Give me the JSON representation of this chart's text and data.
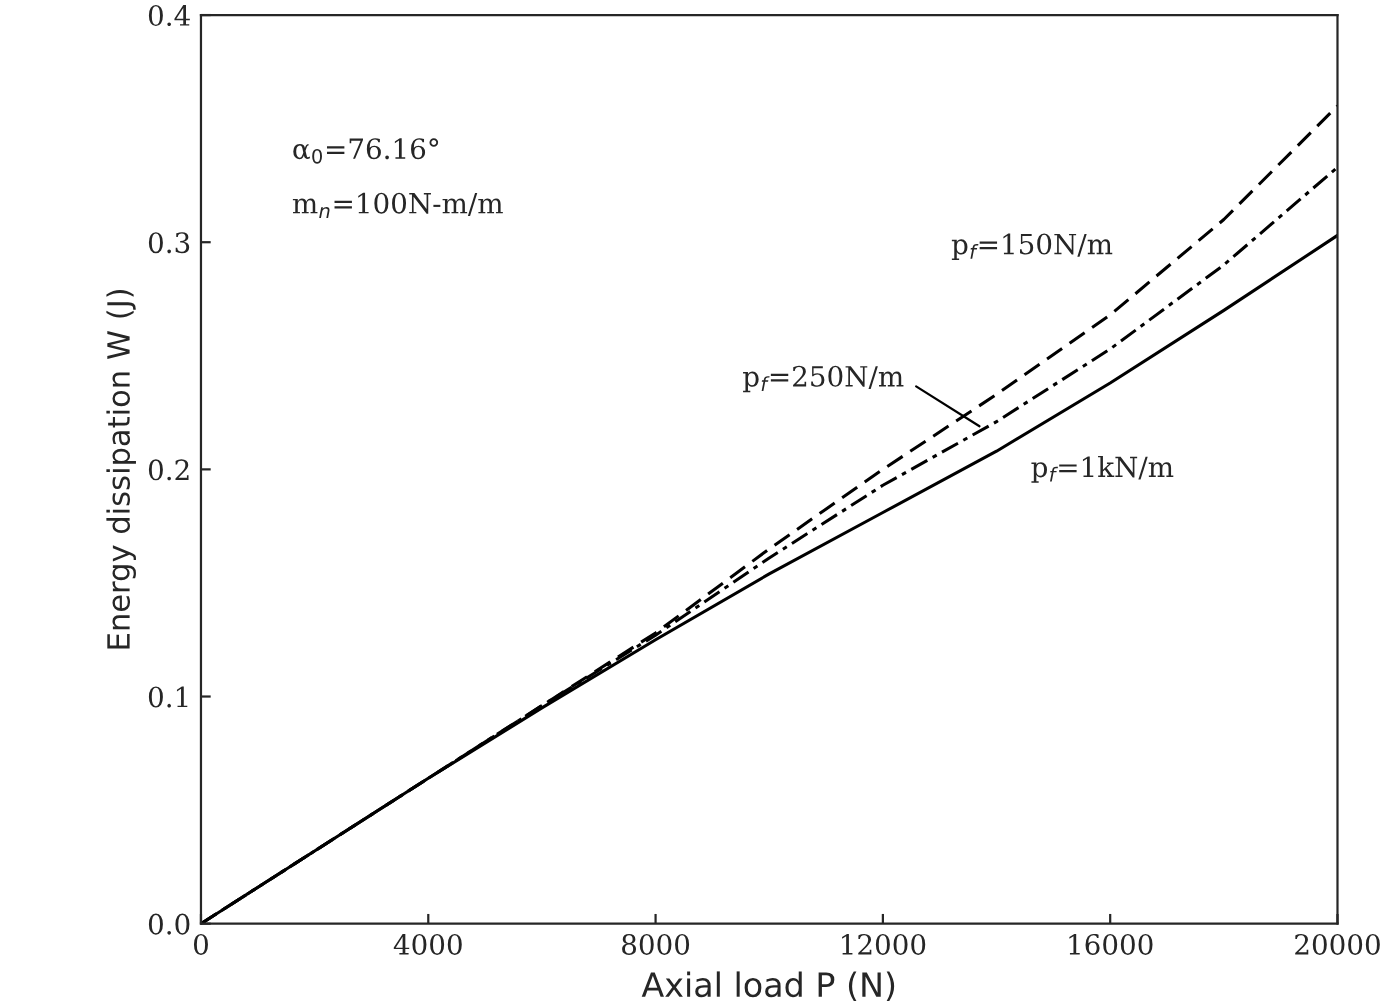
{
  "chart_data": {
    "type": "line",
    "xlabel": "Axial load P (N)",
    "ylabel": "Energy dissipation W (J)",
    "x": [
      0,
      2000,
      4000,
      6000,
      8000,
      10000,
      12000,
      14000,
      16000,
      18000,
      20000
    ],
    "series": [
      {
        "color": "#000000",
        "line_style": "dashed",
        "values": [
          0,
          0.032,
          0.064,
          0.096,
          0.128,
          0.165,
          0.2,
          0.233,
          0.268,
          0.31,
          0.36
        ]
      },
      {
        "color": "#000000",
        "line_style": "dashdot",
        "values": [
          0,
          0.032,
          0.064,
          0.096,
          0.127,
          0.161,
          0.193,
          0.221,
          0.253,
          0.29,
          0.333
        ]
      },
      {
        "color": "#000000",
        "line_style": "solid",
        "values": [
          0,
          0.032,
          0.064,
          0.095,
          0.125,
          0.154,
          0.181,
          0.208,
          0.238,
          0.27,
          0.303
        ]
      }
    ],
    "xlim": [
      0,
      20000
    ],
    "ylim": [
      0,
      0.4
    ],
    "xticks": [
      0,
      4000,
      8000,
      12000,
      16000,
      20000
    ],
    "yticks": [
      {
        "value": 0,
        "label": "0.0"
      },
      0.1,
      0.2,
      0.3,
      0.4
    ],
    "annotations": [
      {
        "text": "α$_{0}$=76.16°"
      },
      {
        "text": "m$_{n}$=100N-m/m"
      },
      {
        "text": "p$_{f}$=150N/m"
      },
      {
        "text": "p$_{f}$=250N/m",
        "x": 13700,
        "y": 0.219
      },
      {
        "text": "p$_{f}$=1kN/m"
      }
    ],
    "grid": false,
    "legend": false
  }
}
